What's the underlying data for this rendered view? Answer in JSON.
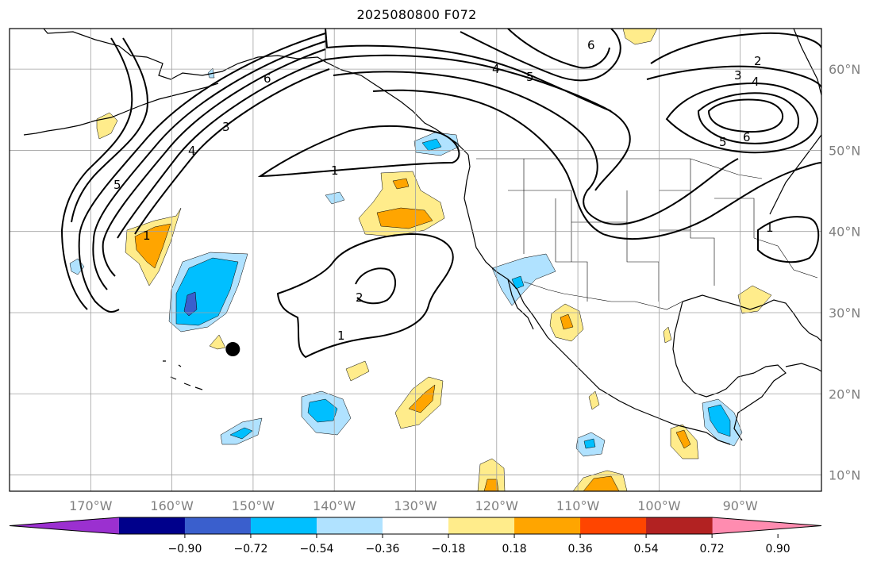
{
  "title": "2025080800 F072",
  "map": {
    "lon_range": [
      -180,
      -80
    ],
    "lat_range": [
      8,
      65
    ],
    "lat_ticks": [
      {
        "value": 10,
        "label": "10°N"
      },
      {
        "value": 20,
        "label": "20°N"
      },
      {
        "value": 30,
        "label": "30°N"
      },
      {
        "value": 40,
        "label": "40°N"
      },
      {
        "value": 50,
        "label": "50°N"
      },
      {
        "value": 60,
        "label": "60°N"
      }
    ],
    "lon_ticks": [
      {
        "value": -170,
        "label": "170°W"
      },
      {
        "value": -160,
        "label": "160°W"
      },
      {
        "value": -150,
        "label": "150°W"
      },
      {
        "value": -140,
        "label": "140°W"
      },
      {
        "value": -130,
        "label": "130°W"
      },
      {
        "value": -120,
        "label": "120°W"
      },
      {
        "value": -110,
        "label": "110°W"
      },
      {
        "value": -100,
        "label": "100°W"
      },
      {
        "value": -90,
        "label": "90°W"
      }
    ],
    "contour_labels": [
      "1",
      "2",
      "3",
      "4",
      "5",
      "6"
    ],
    "marker": {
      "lon": -152.5,
      "lat": 25.5,
      "label": ""
    }
  },
  "colorbar": {
    "boundaries": [
      -1.08,
      -0.9,
      -0.72,
      -0.54,
      -0.36,
      -0.18,
      0.18,
      0.36,
      0.54,
      0.72,
      0.9,
      1.08
    ],
    "colors": [
      "#9b30d0",
      "#00008b",
      "#3a5fcd",
      "#00bfff",
      "#b0e2ff",
      "#ffffff",
      "#ffec8b",
      "#ffa500",
      "#ff4500",
      "#b22222",
      "#ff8cb0"
    ],
    "tick_labels": [
      "−0.90",
      "−0.72",
      "−0.54",
      "−0.36",
      "−0.18",
      "0.18",
      "0.36",
      "0.54",
      "0.72",
      "0.90"
    ]
  },
  "colors": {
    "grid": "#a0a0a0",
    "coast": "#000000",
    "contour": "#000000",
    "axis_label": "#808080"
  }
}
